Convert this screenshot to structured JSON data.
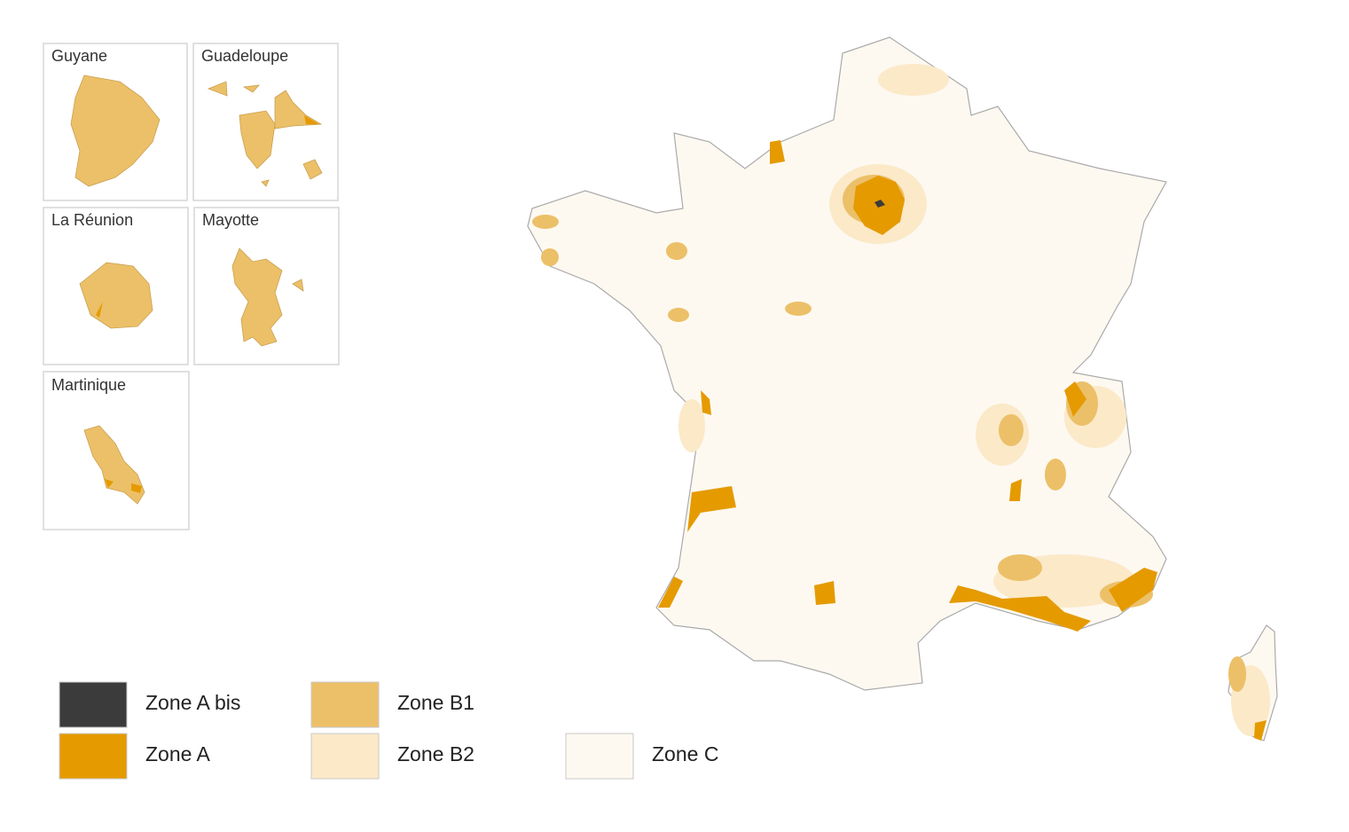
{
  "insets": [
    {
      "label": "Guyane"
    },
    {
      "label": "Guadeloupe"
    },
    {
      "label": "La Réunion"
    },
    {
      "label": "Mayotte"
    },
    {
      "label": "Martinique"
    }
  ],
  "legend": [
    {
      "label": "Zone A bis",
      "color": "#3b3b3b"
    },
    {
      "label": "Zone A",
      "color": "#e59a00"
    },
    {
      "label": "Zone B1",
      "color": "#ecc068"
    },
    {
      "label": "Zone B2",
      "color": "#fbe9c8"
    },
    {
      "label": "Zone C",
      "color": "#fdf9f1"
    }
  ]
}
